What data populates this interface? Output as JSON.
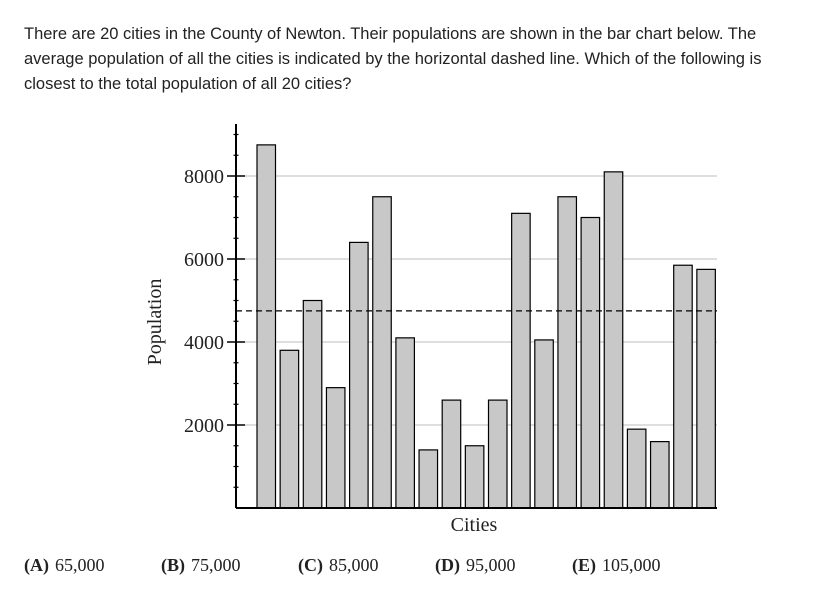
{
  "question": {
    "text": "There are 20 cities in the County of Newton. Their populations are shown in the bar chart below. The average population of all the cities is indicated by the horizontal dashed line. Which of the following is closest to the total population of all 20 cities?"
  },
  "chart_data": {
    "type": "bar",
    "title": "",
    "xlabel": "Cities",
    "ylabel": "Population",
    "ylim": [
      0,
      9000
    ],
    "yticks": [
      2000,
      4000,
      6000,
      8000
    ],
    "ytick_labels": [
      "2000",
      "4000",
      "6000",
      "8000"
    ],
    "grid": true,
    "average_line": 4750,
    "values": [
      8750,
      3800,
      5000,
      2900,
      6400,
      7500,
      4100,
      1400,
      2600,
      1500,
      2600,
      7100,
      4050,
      7500,
      7000,
      8100,
      1900,
      1600,
      5850,
      5750
    ],
    "colors": {
      "bar_fill": "#c8c8c8",
      "bar_stroke": "#000000",
      "grid": "#bdbdbd"
    }
  },
  "choices": [
    {
      "letter": "(A)",
      "value": "65,000"
    },
    {
      "letter": "(B)",
      "value": "75,000"
    },
    {
      "letter": "(C)",
      "value": "85,000"
    },
    {
      "letter": "(D)",
      "value": "95,000"
    },
    {
      "letter": "(E)",
      "value": "105,000"
    }
  ]
}
